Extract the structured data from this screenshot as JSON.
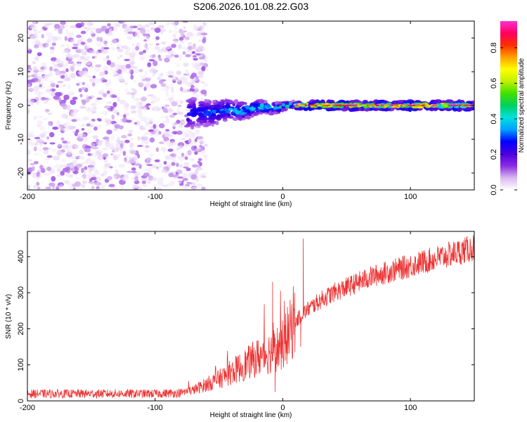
{
  "chart_data": [
    {
      "type": "heatmap",
      "title": "S206.2026.101.08.22.G03",
      "xlabel": "Height of straight line (km)",
      "ylabel": "Frequency (Hz)",
      "xlim": [
        -200,
        150
      ],
      "ylim": [
        -25,
        25
      ],
      "xticks": [
        -200,
        -100,
        0,
        100
      ],
      "yticks": [
        -20,
        -10,
        0,
        10,
        20
      ],
      "colorbar": {
        "label": "Normalized spectral amplitude",
        "range": [
          0.0,
          0.95
        ],
        "ticks": [
          0.0,
          0.2,
          0.4,
          0.6,
          0.8
        ],
        "colormap": [
          "#ffffff",
          "#d8b8f0",
          "#8a2be2",
          "#4b00e0",
          "#0000ff",
          "#00a0ff",
          "#00e0e0",
          "#00d060",
          "#40e000",
          "#c0f000",
          "#ffff00",
          "#ffa000",
          "#ff3000",
          "#ff0060",
          "#ff30d0"
        ]
      },
      "features": [
        {
          "description": "scattered noise",
          "x_range": [
            -200,
            -60
          ],
          "freq_range": [
            -25,
            25
          ],
          "amplitude_range": [
            0.02,
            0.12
          ]
        },
        {
          "description": "tone emerging",
          "x_range": [
            -75,
            10
          ],
          "freq_range": [
            -6,
            3
          ],
          "amplitude_range": [
            0.1,
            0.75
          ]
        },
        {
          "description": "stable carrier",
          "x_range": [
            10,
            150
          ],
          "freq_center": 0,
          "amplitude_range": [
            0.15,
            0.95
          ]
        }
      ]
    },
    {
      "type": "line",
      "title": "",
      "xlabel": "Height of straight line (km)",
      "ylabel": "SNR (10 * v/v)",
      "xlim": [
        -200,
        150
      ],
      "ylim": [
        0,
        470
      ],
      "xticks": [
        -200,
        -100,
        0,
        100
      ],
      "yticks": [
        0,
        100,
        200,
        300,
        400
      ],
      "series": [
        {
          "name": "SNR",
          "color": "#ee3333",
          "trend_points": [
            {
              "x": -200,
              "y": 20
            },
            {
              "x": -150,
              "y": 20
            },
            {
              "x": -100,
              "y": 20
            },
            {
              "x": -80,
              "y": 22
            },
            {
              "x": -70,
              "y": 30
            },
            {
              "x": -60,
              "y": 45
            },
            {
              "x": -50,
              "y": 60
            },
            {
              "x": -40,
              "y": 80
            },
            {
              "x": -30,
              "y": 100
            },
            {
              "x": -20,
              "y": 120
            },
            {
              "x": -10,
              "y": 135
            },
            {
              "x": 0,
              "y": 155
            },
            {
              "x": 5,
              "y": 190
            },
            {
              "x": 10,
              "y": 220
            },
            {
              "x": 15,
              "y": 240
            },
            {
              "x": 20,
              "y": 255
            },
            {
              "x": 30,
              "y": 280
            },
            {
              "x": 40,
              "y": 300
            },
            {
              "x": 50,
              "y": 315
            },
            {
              "x": 60,
              "y": 330
            },
            {
              "x": 70,
              "y": 345
            },
            {
              "x": 80,
              "y": 355
            },
            {
              "x": 90,
              "y": 365
            },
            {
              "x": 100,
              "y": 375
            },
            {
              "x": 110,
              "y": 385
            },
            {
              "x": 120,
              "y": 395
            },
            {
              "x": 130,
              "y": 405
            },
            {
              "x": 140,
              "y": 415
            },
            {
              "x": 150,
              "y": 425
            }
          ],
          "spikes": [
            {
              "x": -8,
              "y": 330
            },
            {
              "x": -6,
              "y": 25
            },
            {
              "x": 16,
              "y": 450
            },
            {
              "x": 14,
              "y": 150
            }
          ]
        }
      ]
    }
  ]
}
